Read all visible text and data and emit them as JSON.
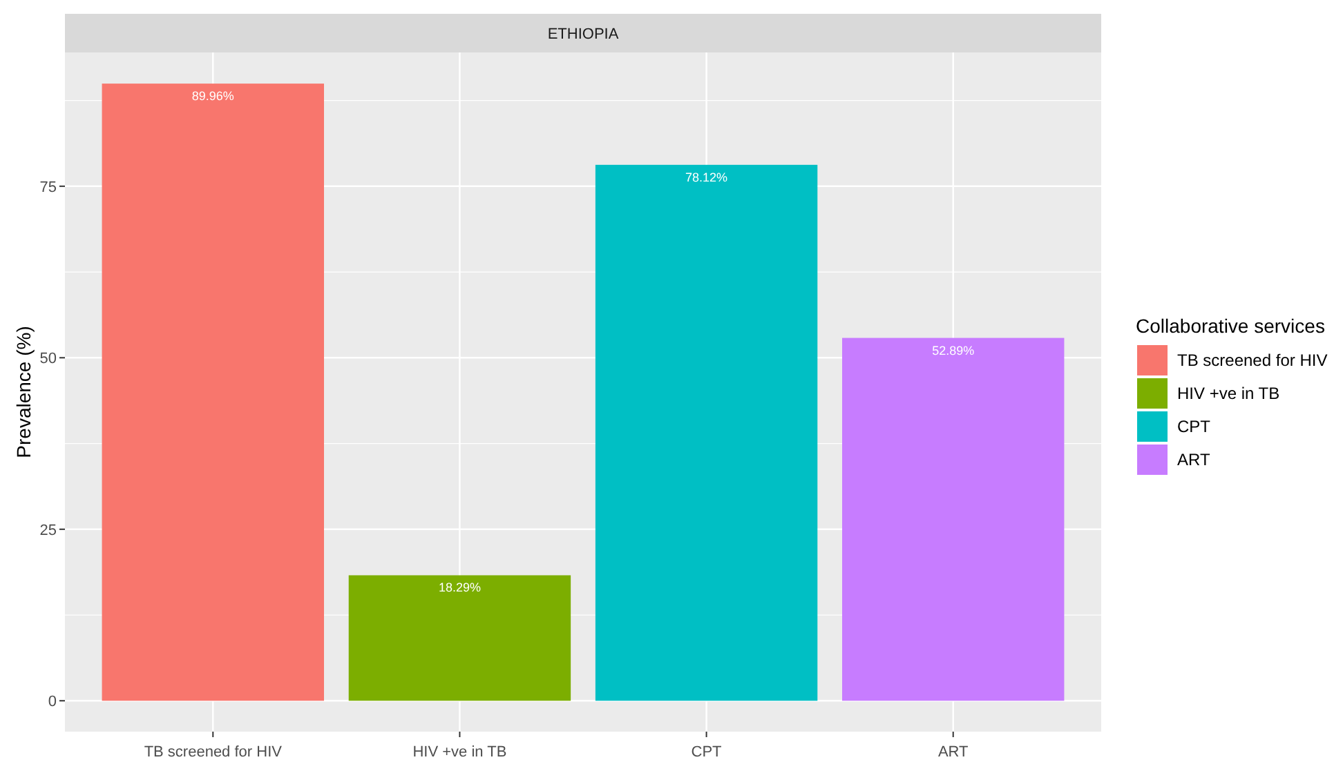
{
  "chart_data": {
    "type": "bar",
    "title": "ETHIOPIA",
    "ylabel": "Prevalence (%)",
    "legend_title": "Collaborative services",
    "categories": [
      "TB screened for HIV",
      "HIV +ve in TB",
      "CPT",
      "ART"
    ],
    "series": [
      {
        "name": "TB screened for HIV",
        "color": "#f8766d",
        "values": [
          89.96,
          null,
          null,
          null
        ],
        "value_labels": [
          "89.96%",
          null,
          null,
          null
        ]
      },
      {
        "name": "HIV +ve in TB",
        "color": "#7cae00",
        "values": [
          null,
          18.29,
          null,
          null
        ],
        "value_labels": [
          null,
          "18.29%",
          null,
          null
        ]
      },
      {
        "name": "CPT",
        "color": "#00bfc4",
        "values": [
          null,
          null,
          78.12,
          null
        ],
        "value_labels": [
          null,
          null,
          "78.12%",
          null
        ]
      },
      {
        "name": "ART",
        "color": "#c77cff",
        "values": [
          null,
          null,
          null,
          52.89
        ],
        "value_labels": [
          null,
          null,
          null,
          "52.89%"
        ]
      }
    ],
    "ylim": [
      -4.5,
      94.5
    ],
    "yticks": [
      0,
      25,
      50,
      75
    ],
    "grid": true,
    "legend": "right"
  }
}
